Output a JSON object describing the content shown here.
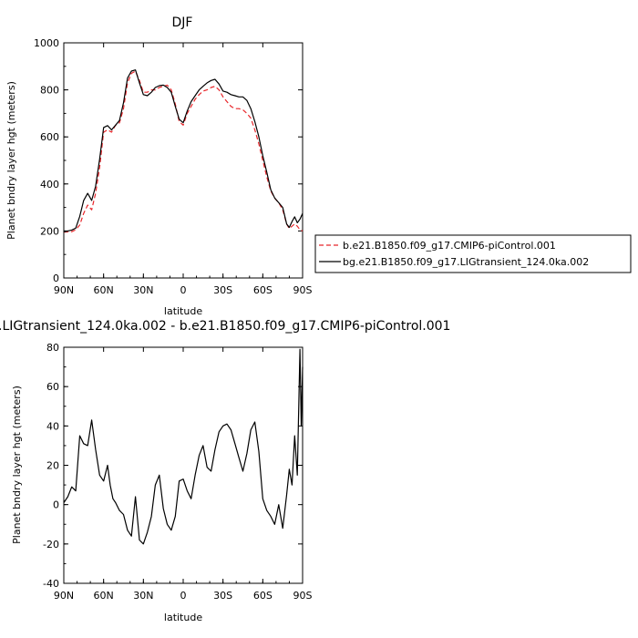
{
  "chart_data": [
    {
      "type": "line",
      "title": "DJF",
      "xlabel": "latitude",
      "ylabel": "Planet bndry layer hgt (meters)",
      "xlim": [
        90,
        -90
      ],
      "ylim": [
        0,
        1000
      ],
      "xticks": [
        90,
        60,
        30,
        0,
        -30,
        -60,
        -90
      ],
      "xtick_labels": [
        "90N",
        "60N",
        "30N",
        "0",
        "30S",
        "60S",
        "90S"
      ],
      "yticks": [
        0,
        200,
        400,
        600,
        800,
        1000
      ],
      "legend_position": "right",
      "series": [
        {
          "name": "b.e21.B1850.f09_g17.CMIP6-piControl.001",
          "color": "#e8262a",
          "dash": "dashed",
          "x": [
            90,
            87,
            84,
            81,
            78,
            75,
            72,
            69,
            66,
            63,
            60,
            57,
            54,
            51,
            48,
            45,
            42,
            39,
            36,
            33,
            30,
            27,
            24,
            21,
            18,
            15,
            12,
            9,
            6,
            3,
            0,
            -3,
            -6,
            -9,
            -12,
            -15,
            -18,
            -21,
            -24,
            -27,
            -30,
            -33,
            -36,
            -39,
            -42,
            -45,
            -48,
            -51,
            -54,
            -57,
            -60,
            -63,
            -66,
            -69,
            -72,
            -75,
            -78,
            -80,
            -82,
            -84,
            -86,
            -88,
            -90
          ],
          "y": [
            195,
            196,
            197,
            205,
            225,
            275,
            310,
            290,
            360,
            470,
            620,
            630,
            620,
            650,
            660,
            720,
            830,
            870,
            880,
            840,
            790,
            790,
            800,
            800,
            810,
            815,
            820,
            800,
            740,
            665,
            650,
            700,
            730,
            760,
            780,
            795,
            800,
            810,
            815,
            800,
            770,
            750,
            730,
            720,
            720,
            715,
            700,
            680,
            630,
            570,
            500,
            430,
            370,
            340,
            320,
            290,
            230,
            210,
            220,
            230,
            220,
            205,
            200
          ]
        },
        {
          "name": "bg.e21.B1850.f09_g17.LIGtransient_124.0ka.002",
          "color": "#000000",
          "dash": "solid",
          "x": [
            90,
            87,
            84,
            81,
            78,
            75,
            72,
            69,
            66,
            63,
            60,
            57,
            54,
            51,
            48,
            45,
            42,
            39,
            36,
            33,
            30,
            27,
            24,
            21,
            18,
            15,
            12,
            9,
            6,
            3,
            0,
            -3,
            -6,
            -9,
            -12,
            -15,
            -18,
            -21,
            -24,
            -27,
            -30,
            -33,
            -36,
            -39,
            -42,
            -45,
            -48,
            -51,
            -54,
            -57,
            -60,
            -63,
            -66,
            -69,
            -72,
            -75,
            -78,
            -80,
            -82,
            -84,
            -86,
            -88,
            -90
          ],
          "y": [
            196,
            200,
            204,
            212,
            262,
            330,
            360,
            330,
            390,
            505,
            640,
            648,
            630,
            650,
            670,
            745,
            850,
            880,
            885,
            830,
            780,
            775,
            790,
            810,
            818,
            820,
            810,
            790,
            730,
            675,
            660,
            710,
            750,
            775,
            800,
            815,
            830,
            840,
            845,
            825,
            795,
            790,
            780,
            775,
            770,
            770,
            755,
            720,
            665,
            600,
            520,
            450,
            375,
            340,
            320,
            300,
            230,
            215,
            240,
            260,
            235,
            250,
            275
          ]
        }
      ]
    },
    {
      "type": "line",
      "title": ".LIGtransient_124.0ka.002 - b.e21.B1850.f09_g17.CMIP6-piControl.001",
      "xlabel": "latitude",
      "ylabel": "Planet bndry layer hgt (meters)",
      "xlim": [
        90,
        -90
      ],
      "ylim": [
        -40,
        80
      ],
      "xticks": [
        90,
        60,
        30,
        0,
        -30,
        -60,
        -90
      ],
      "xtick_labels": [
        "90N",
        "60N",
        "30N",
        "0",
        "30S",
        "60S",
        "90S"
      ],
      "yticks": [
        -40,
        -20,
        0,
        20,
        40,
        60,
        80
      ],
      "series": [
        {
          "color": "#000000",
          "x": [
            90,
            87,
            84,
            81,
            78,
            75,
            72,
            69,
            66,
            63,
            60,
            57,
            55,
            53,
            51,
            48,
            45,
            42,
            39,
            36,
            33,
            30,
            27,
            24,
            21,
            18,
            15,
            12,
            9,
            6,
            3,
            0,
            -3,
            -6,
            -9,
            -12,
            -15,
            -18,
            -21,
            -24,
            -27,
            -30,
            -33,
            -36,
            -39,
            -42,
            -45,
            -48,
            -51,
            -54,
            -57,
            -60,
            -63,
            -66,
            -69,
            -72,
            -75,
            -78,
            -80,
            -82,
            -84,
            -86,
            -88,
            -89,
            -90
          ],
          "y": [
            1,
            4,
            9,
            7,
            35,
            31,
            30,
            43,
            28,
            15,
            12,
            20,
            10,
            3,
            1,
            -3,
            -5,
            -13,
            -16,
            4,
            -18,
            -20,
            -14,
            -6,
            10,
            15,
            -2,
            -10,
            -13,
            -6,
            12,
            13,
            7,
            3,
            15,
            25,
            30,
            19,
            17,
            28,
            37,
            40,
            41,
            38,
            31,
            24,
            17,
            26,
            38,
            42,
            27,
            3,
            -3,
            -6,
            -10,
            0,
            -12,
            5,
            18,
            10,
            35,
            15,
            79,
            40,
            70
          ]
        }
      ]
    }
  ]
}
